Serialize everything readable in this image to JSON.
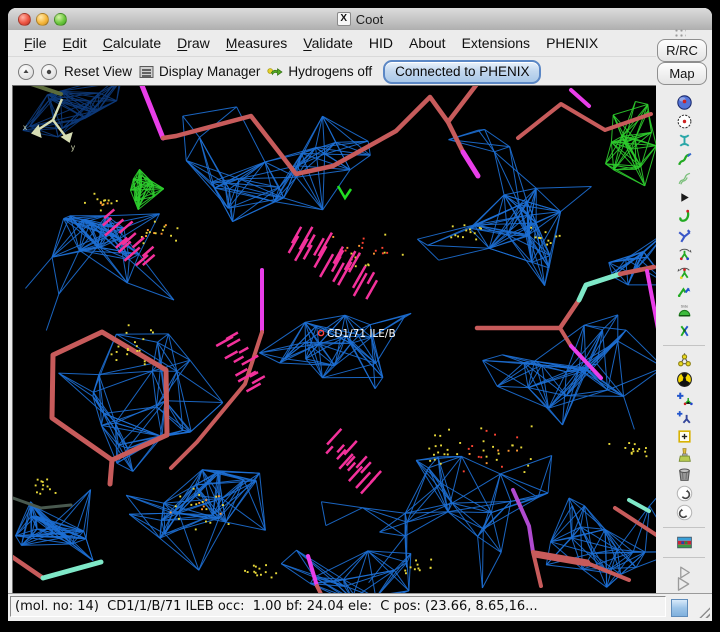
{
  "window": {
    "title": "Coot",
    "x11_badge": "X"
  },
  "menubar": {
    "items": [
      {
        "label": "File",
        "mnemonic": true
      },
      {
        "label": "Edit",
        "mnemonic": true
      },
      {
        "label": "Calculate",
        "mnemonic": true
      },
      {
        "label": "Draw",
        "mnemonic": true
      },
      {
        "label": "Measures",
        "mnemonic": true
      },
      {
        "label": "Validate",
        "mnemonic": true
      },
      {
        "label": "HID",
        "mnemonic": false
      },
      {
        "label": "About",
        "mnemonic": false
      },
      {
        "label": "Extensions",
        "mnemonic": false
      },
      {
        "label": "PHENIX",
        "mnemonic": false
      }
    ]
  },
  "toolbar": {
    "reset_view_label": "Reset View",
    "display_manager_label": "Display Manager",
    "hydrogens_label": "Hydrogens off",
    "phenix_button_label": "Connected to PHENIX"
  },
  "right_panel": {
    "rc_label": "R/RC",
    "map_label": "Map",
    "tool_groups": [
      [
        {
          "name": "tool-sphere",
          "icon": "blue-sphere-icon"
        },
        {
          "name": "tool-circle-dot",
          "icon": "circle-red-dot-icon"
        },
        {
          "name": "tool-caliper",
          "icon": "teal-caliper-icon"
        },
        {
          "name": "tool-refine",
          "icon": "green-squiggle-icon"
        },
        {
          "name": "tool-regularize",
          "icon": "outline-squiggle-icon"
        },
        {
          "name": "tool-expand",
          "icon": "small-triangle-icon"
        },
        {
          "name": "tool-rigid-body",
          "icon": "green-j-squiggle-icon"
        },
        {
          "name": "tool-rotate-translate",
          "icon": "blue-zigzag-icon"
        },
        {
          "name": "tool-auto-fit-rotamer",
          "icon": "rotamer-rotate-icon"
        },
        {
          "name": "tool-rotamers",
          "icon": "rotamer-rotate-alt-icon"
        },
        {
          "name": "tool-edit-chi",
          "icon": "flip-arrows-icon"
        },
        {
          "name": "tool-side-chain-flip",
          "icon": "green-dome-icon"
        },
        {
          "name": "tool-jed-flip",
          "icon": "rotate-y-icon"
        }
      ],
      [
        {
          "name": "tool-mutate",
          "icon": "yellow-triatom-icon"
        },
        {
          "name": "tool-simple-mutate",
          "icon": "radiation-icon"
        },
        {
          "name": "tool-add-terminal",
          "icon": "plus-molecule-icon"
        },
        {
          "name": "tool-add-alt-conf",
          "icon": "plus-y-icon"
        },
        {
          "name": "tool-place-atom",
          "icon": "box-plus-icon"
        },
        {
          "name": "tool-clear-picks",
          "icon": "brush-icon"
        },
        {
          "name": "tool-delete",
          "icon": "trash-icon"
        },
        {
          "name": "tool-undo",
          "icon": "undo-icon"
        },
        {
          "name": "tool-redo",
          "icon": "redo-icon"
        }
      ],
      [
        {
          "name": "tool-run-refmac",
          "icon": "flag-icon"
        }
      ],
      [
        {
          "name": "tool-go",
          "icon": "play-outline-icon"
        }
      ]
    ]
  },
  "canvas": {
    "atom_label": "CD1/71 ILE/B",
    "colors": {
      "mesh": "#1d6fd4",
      "mesh_dark": "#0d3a7a",
      "diff_map_green": "#2ecc2e",
      "bond": "#c75b5b",
      "magenta": "#e93ee9",
      "aqua": "#7fe8c8",
      "purple": "#b04ad0",
      "olive": "#5c6b3c",
      "gray_green": "#49594f",
      "spike": "#f3319b",
      "dot_yellow": "#e8d93a",
      "dot_orange": "#ff9833",
      "dot_red": "#ff4433",
      "axes": "#d6ddb4",
      "label": "#ffffff",
      "marker": "#ff4444",
      "green_arrow": "#22dd22"
    }
  },
  "statusbar": {
    "text": "(mol. no: 14)  CD1/1/B/71 ILEB occ:  1.00 bf: 24.04 ele:  C pos: (23.66, 8.65,16..."
  }
}
